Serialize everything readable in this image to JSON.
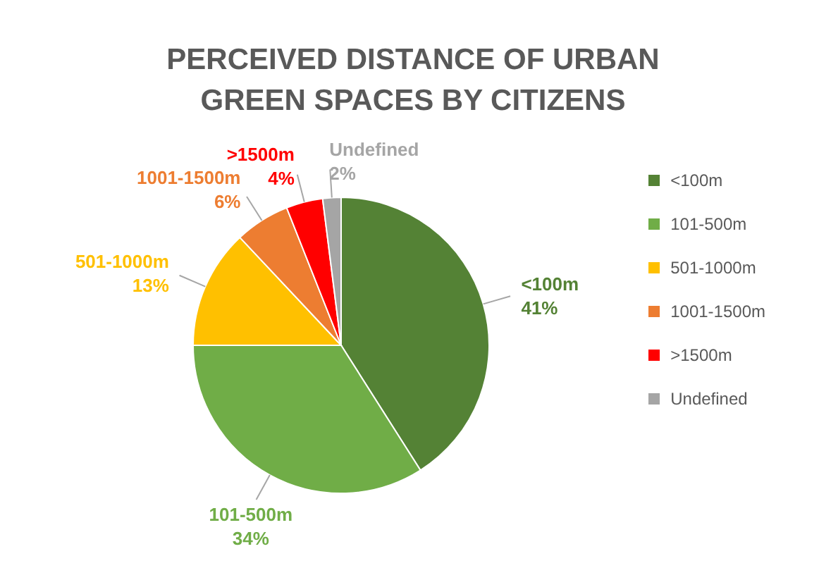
{
  "chart_data": {
    "type": "pie",
    "title": "PERCEIVED DISTANCE OF URBAN GREEN SPACES BY CITIZENS",
    "categories": [
      "<100m",
      "101-500m",
      "501-1000m",
      "1001-1500m",
      ">1500m",
      "Undefined"
    ],
    "values": [
      41,
      34,
      13,
      6,
      4,
      2
    ],
    "value_labels": [
      "41%",
      "34%",
      "13%",
      "6%",
      "4%",
      "2%"
    ],
    "colors": [
      "#548235",
      "#70ad47",
      "#ffc000",
      "#ed7d31",
      "#ff0000",
      "#a5a5a5"
    ],
    "legend": "right"
  }
}
